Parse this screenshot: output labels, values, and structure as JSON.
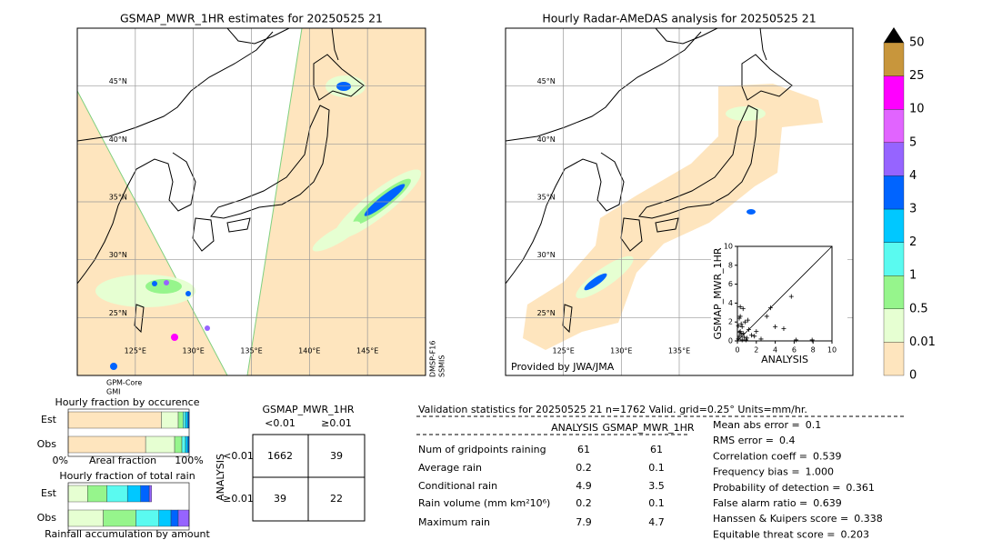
{
  "maps": [
    {
      "title": "GSMAP_MWR_1HR estimates for 20250525 21",
      "xlim": [
        120,
        150
      ],
      "ylim": [
        20,
        50
      ],
      "lat_ticks": [
        {
          "value": 45,
          "label": "45°N"
        },
        {
          "value": 40,
          "label": "40°N"
        },
        {
          "value": 35,
          "label": "35°N"
        },
        {
          "value": 30,
          "label": "30°N"
        },
        {
          "value": 25,
          "label": "25°N"
        }
      ],
      "lon_ticks": [
        {
          "value": 125,
          "label": "125°E"
        },
        {
          "value": 130,
          "label": "130°E"
        },
        {
          "value": 135,
          "label": "135°E"
        },
        {
          "value": 140,
          "label": "140°E"
        },
        {
          "value": 145,
          "label": "145°E"
        }
      ],
      "annotations": [
        "GPM-Core",
        "GMI",
        "DMSP-F16",
        "SSMIS"
      ]
    },
    {
      "title": "Hourly Radar-AMeDAS analysis for 20250525 21",
      "xlim": [
        120,
        150
      ],
      "ylim": [
        20,
        50
      ],
      "lat_ticks": [
        {
          "value": 45,
          "label": "45°N"
        },
        {
          "value": 40,
          "label": "40°N"
        },
        {
          "value": 35,
          "label": "35°N"
        },
        {
          "value": 30,
          "label": "30°N"
        },
        {
          "value": 25,
          "label": "25°N"
        }
      ],
      "lon_ticks": [
        {
          "value": 125,
          "label": "125°E"
        },
        {
          "value": 130,
          "label": "130°E"
        },
        {
          "value": 135,
          "label": "135°E"
        }
      ],
      "annotations": [
        "Provided by JWA/JMA"
      ]
    }
  ],
  "colorbar": {
    "ticks": [
      0,
      0.01,
      0.5,
      1,
      2,
      3,
      4,
      5,
      10,
      25,
      50
    ],
    "colors": [
      "#fee5be",
      "#e6ffd2",
      "#96f58c",
      "#5afaf0",
      "#00c8ff",
      "#0064ff",
      "#9664ff",
      "#e164ff",
      "#ff00ff",
      "#c8963c"
    ],
    "extend_color": "#000000"
  },
  "chart_data": [
    {
      "type": "scatter",
      "xlabel": "ANALYSIS",
      "ylabel": "GSMAP_MWR_1HR",
      "xlim": [
        0,
        10
      ],
      "ylim": [
        0,
        10
      ],
      "xticks": [
        0,
        2,
        4,
        6,
        8,
        10
      ],
      "yticks": [
        0,
        2,
        4,
        6,
        8,
        10
      ],
      "color": "#000000",
      "diagonal": true,
      "x": [
        0.1,
        0.2,
        0.3,
        0.5,
        0.6,
        0.8,
        1.0,
        0.2,
        0.4,
        0.7,
        1.2,
        1.5,
        0.3,
        0.9,
        2.0,
        2.5,
        3.1,
        3.5,
        4.0,
        4.9,
        6.2,
        7.9,
        0.1,
        0.5,
        1.1,
        0.6,
        0.2,
        1.8,
        0.4,
        0.3,
        5.7
      ],
      "y": [
        0.2,
        0.5,
        1.0,
        1.5,
        0.8,
        2.0,
        0.3,
        2.4,
        1.8,
        0.4,
        1.2,
        0.6,
        2.6,
        0.1,
        1.0,
        0.2,
        2.6,
        3.5,
        1.5,
        1.3,
        0.1,
        0.1,
        1.6,
        0.1,
        2.2,
        3.4,
        0.9,
        0.5,
        0.7,
        3.6,
        4.7
      ]
    },
    {
      "type": "stacked-bar",
      "title": "Hourly fraction by occurence",
      "xlabel": "Areal fraction",
      "categories": [
        "Est",
        "Obs"
      ],
      "xlim": [
        0,
        100
      ],
      "xticks": [
        {
          "value": 0,
          "label": "0%"
        },
        {
          "value": 100,
          "label": "100%"
        }
      ],
      "series": [
        {
          "color": "#fee5be",
          "values": [
            77,
            64
          ]
        },
        {
          "color": "#e6ffd2",
          "values": [
            14,
            24
          ]
        },
        {
          "color": "#96f58c",
          "values": [
            4,
            6
          ]
        },
        {
          "color": "#5afaf0",
          "values": [
            2,
            3
          ]
        },
        {
          "color": "#00c8ff",
          "values": [
            2,
            2
          ]
        },
        {
          "color": "#0064ff",
          "values": [
            1,
            1
          ]
        }
      ]
    },
    {
      "type": "stacked-bar",
      "title": "Hourly fraction of total rain",
      "xlabel": "Rainfall accumulation by amount",
      "categories": [
        "Est",
        "Obs"
      ],
      "xlim": [
        0,
        100
      ],
      "series": [
        {
          "color": "#e6ffd2",
          "values": [
            16,
            29
          ]
        },
        {
          "color": "#96f58c",
          "values": [
            16,
            27
          ]
        },
        {
          "color": "#5afaf0",
          "values": [
            17,
            19
          ]
        },
        {
          "color": "#00c8ff",
          "values": [
            11,
            10
          ]
        },
        {
          "color": "#0064ff",
          "values": [
            7,
            6
          ]
        },
        {
          "color": "#9664ff",
          "values": [
            2,
            9
          ]
        }
      ]
    }
  ],
  "contingency": {
    "title": "GSMAP_MWR_1HR",
    "columns": [
      "<0.01",
      "≥0.01"
    ],
    "row_title": "ANALYSIS",
    "rows": [
      "<0.01",
      "≥0.01"
    ],
    "cells": [
      [
        1662,
        39
      ],
      [
        39,
        22
      ]
    ]
  },
  "statistics": {
    "header": "Validation statistics for 20250525 21  n=1762 Valid. grid=0.25° Units=mm/hr.",
    "columns": [
      "ANALYSIS",
      "GSMAP_MWR_1HR"
    ],
    "rows": [
      {
        "label": "Num of gridpoints raining",
        "values": [
          61,
          61
        ]
      },
      {
        "label": "Average rain",
        "values": [
          0.2,
          0.1
        ]
      },
      {
        "label": "Conditional rain",
        "values": [
          4.9,
          3.5
        ]
      },
      {
        "label": "Rain volume (mm km²10⁶)",
        "values": [
          0.2,
          0.1
        ]
      },
      {
        "label": "Maximum rain",
        "values": [
          7.9,
          4.7
        ]
      }
    ],
    "scores": [
      {
        "label": "Mean abs error =",
        "value": 0.1
      },
      {
        "label": "RMS error =",
        "value": 0.4
      },
      {
        "label": "Correlation coeff =",
        "value": 0.539
      },
      {
        "label": "Frequency bias =",
        "value": "1.000"
      },
      {
        "label": "Probability of detection =",
        "value": 0.361
      },
      {
        "label": "False alarm ratio =",
        "value": 0.639
      },
      {
        "label": "Hanssen & Kuipers score =",
        "value": 0.338
      },
      {
        "label": "Equitable threat score =",
        "value": 0.203
      }
    ]
  }
}
